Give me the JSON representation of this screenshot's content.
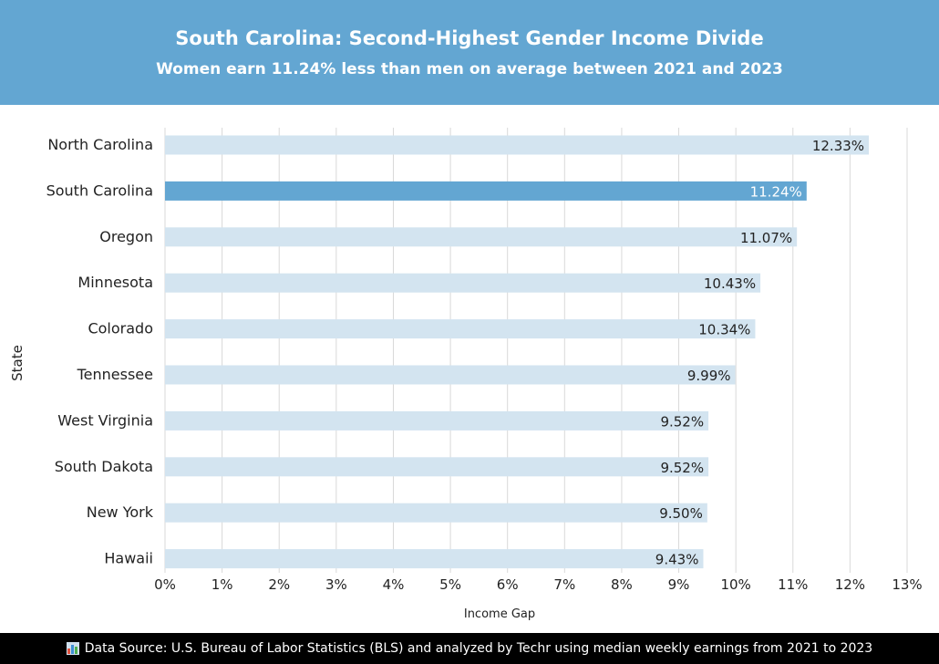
{
  "header": {
    "title": "South Carolina: Second-Highest Gender Income Divide",
    "subtitle": "Women earn 11.24% less than men on average between 2021 and 2023"
  },
  "footer": {
    "icon": "bar-chart-icon",
    "text": "Data Source: U.S. Bureau of Labor Statistics (BLS) and analyzed by Techr using median weekly earnings from 2021 to 2023"
  },
  "colors": {
    "header": "#63a6d2",
    "bar": "#d3e4f0",
    "highlight": "#63a6d2"
  },
  "chart_data": {
    "type": "bar",
    "orientation": "horizontal",
    "categories": [
      "North Carolina",
      "South Carolina",
      "Oregon",
      "Minnesota",
      "Colorado",
      "Tennessee",
      "West Virginia",
      "South Dakota",
      "New York",
      "Hawaii"
    ],
    "values": [
      12.33,
      11.24,
      11.07,
      10.43,
      10.34,
      9.99,
      9.52,
      9.52,
      9.5,
      9.43
    ],
    "labels": [
      "12.33%",
      "11.24%",
      "11.07%",
      "10.43%",
      "10.34%",
      "9.99%",
      "9.52%",
      "9.52%",
      "9.50%",
      "9.43%"
    ],
    "highlight": "South Carolina",
    "xlabel": "Income Gap",
    "ylabel": "State",
    "xlim": [
      0,
      13
    ],
    "xticks": [
      "0%",
      "1%",
      "2%",
      "3%",
      "4%",
      "5%",
      "6%",
      "7%",
      "8%",
      "9%",
      "10%",
      "11%",
      "12%",
      "13%"
    ],
    "grid": true
  }
}
